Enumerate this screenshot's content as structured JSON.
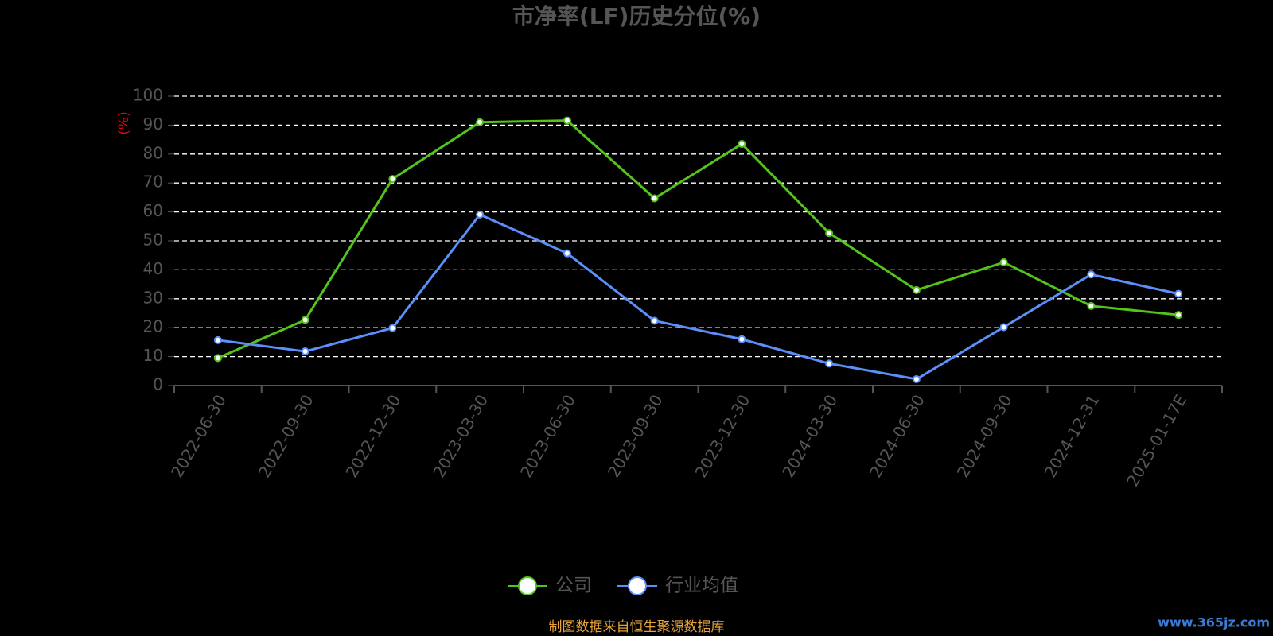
{
  "chart_data": {
    "type": "line",
    "title": "市净率(LF)历史分位(%)",
    "y_label": "(%)",
    "categories": [
      "2022-06-30",
      "2022-09-30",
      "2022-12-30",
      "2023-03-30",
      "2023-06-30",
      "2023-09-30",
      "2023-12-30",
      "2024-03-30",
      "2024-06-30",
      "2024-09-30",
      "2024-12-31",
      "2025-01-17E"
    ],
    "series": [
      {
        "name": "公司",
        "color": "#52c41a",
        "values": [
          9.5,
          22.7,
          71.4,
          91,
          91.6,
          64.7,
          83.5,
          52.7,
          33,
          42.6,
          27.5,
          24.4
        ]
      },
      {
        "name": "行业均值",
        "color": "#5b8ff9",
        "values": [
          15.7,
          11.8,
          19.9,
          59.1,
          45.7,
          22.4,
          16,
          7.6,
          2.2,
          20.2,
          38.4,
          31.7
        ]
      }
    ],
    "ylim": [
      0,
      100
    ],
    "yticks": [
      0,
      10,
      20,
      30,
      40,
      50,
      60,
      70,
      80,
      90,
      100
    ],
    "grid": true,
    "legend": "bottom",
    "source": "制图数据来自恒生聚源数据库",
    "watermark": "www.365jz.com"
  }
}
